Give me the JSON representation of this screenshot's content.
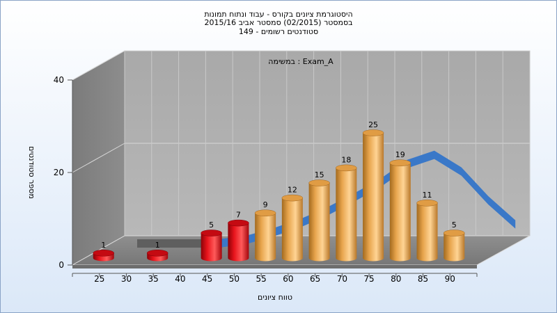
{
  "title_lines": [
    "היסטוגרמת ציונים בקורס - עבוד ונתוח תמונות",
    "בסמסטר  (02/2015)  סמסטר אביב 2015/16",
    "סטודנטים רשומים - 149"
  ],
  "inner_label": "במשימה : Exam_A",
  "chart_data": {
    "type": "bar",
    "title": "היסטוגרמת ציונים בקורס - עבוד ונתוח תמונות",
    "xlabel": "טווח ציונים",
    "ylabel": "מספר סטודנטים",
    "categories": [
      "25",
      "30",
      "35",
      "40",
      "45",
      "50",
      "55",
      "60",
      "65",
      "70",
      "75",
      "80",
      "85",
      "90"
    ],
    "x_tick_labels": [
      "25",
      "30",
      "35",
      "40",
      "45",
      "50",
      "55",
      "60",
      "65",
      "70",
      "75",
      "80",
      "85",
      "90"
    ],
    "y_ticks": [
      0,
      20,
      40
    ],
    "ylim": [
      0,
      40
    ],
    "series": [
      {
        "values": [
          1,
          null,
          1,
          null,
          5,
          7,
          9,
          12,
          15,
          18,
          25,
          19,
          11,
          5
        ],
        "data_labels": [
          "1",
          "",
          "1",
          "",
          "5",
          "7",
          "9",
          "12",
          "15",
          "18",
          "25",
          "19",
          "11",
          "5"
        ]
      }
    ],
    "bar_colors": {
      "fail_red": "#e8141c",
      "pass_orange": "#f0b45a"
    },
    "fail_categories": [
      "25",
      "35",
      "45",
      "50"
    ],
    "curve": {
      "color": "#3a78c8",
      "values": [
        0,
        0,
        0,
        0,
        0.8,
        2.6,
        4.8,
        7.6,
        11.0,
        14.6,
        19.2,
        21.4,
        17.4,
        10.4,
        4.6
      ]
    },
    "grid": true,
    "legend": "none",
    "style": "3d"
  }
}
